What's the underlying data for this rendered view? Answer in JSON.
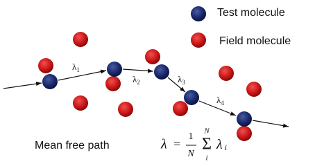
{
  "legend": {
    "test": "Test molecule",
    "field": "Field molecule"
  },
  "path_labels": [
    {
      "symbol": "λ",
      "subscript": "1"
    },
    {
      "symbol": "λ",
      "subscript": "2"
    },
    {
      "symbol": "λ",
      "subscript": "3"
    },
    {
      "symbol": "λ",
      "subscript": "4"
    }
  ],
  "caption": "Mean free path",
  "formula": {
    "lhs": "λ",
    "equals": "=",
    "numerator": "1",
    "denominator": "N",
    "sum": "Σ",
    "upper": "N",
    "lower": "i",
    "term": "λ",
    "term_subscript": "i"
  }
}
